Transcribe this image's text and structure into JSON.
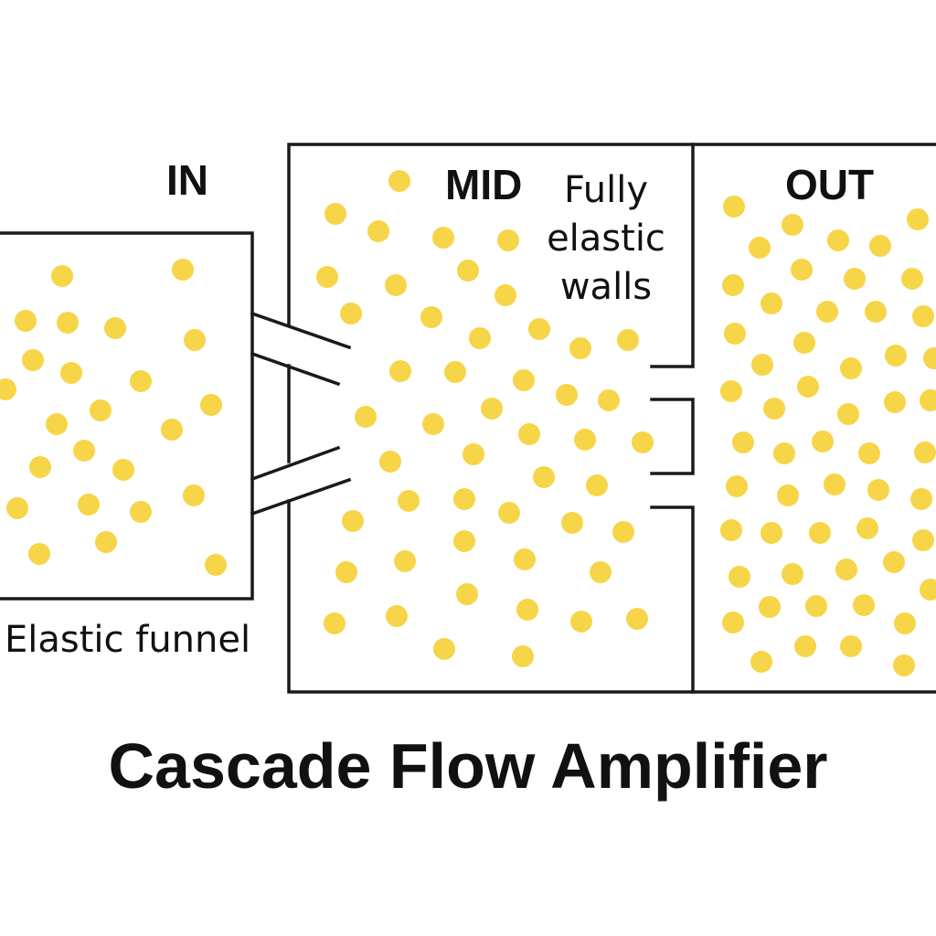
{
  "diagram": {
    "title": "Cascade Flow Amplifier",
    "chambers": {
      "in": {
        "label": "IN"
      },
      "mid": {
        "label": "MID"
      },
      "out": {
        "label": "OUT"
      }
    },
    "annotations": {
      "funnel": "Elastic funnel",
      "walls": [
        "Fully",
        "elastic",
        "walls"
      ]
    },
    "colors": {
      "particle": "#f7d549",
      "wall": "#1a1a1a",
      "background": "#ffffff"
    }
  }
}
